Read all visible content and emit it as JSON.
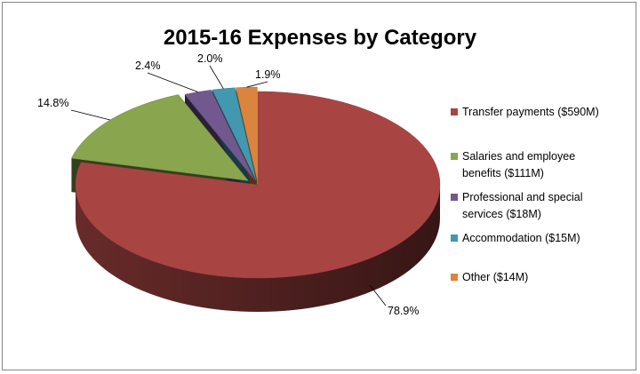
{
  "chart_data": {
    "type": "pie",
    "title": "2015-16 Expenses by Category",
    "style": "3d-exploded",
    "legend_position": "right",
    "slices": [
      {
        "label": "Transfer payments ($590M)",
        "label_lines": [
          "Transfer payments ($590M)"
        ],
        "value": 590,
        "percent_label": "78.9%",
        "color": "#A84543"
      },
      {
        "label": "Salaries and employee benefits ($111M)",
        "label_lines": [
          "Salaries and employee",
          "benefits ($111M)"
        ],
        "value": 111,
        "percent_label": "14.8%",
        "color": "#89A54E"
      },
      {
        "label": "Professional and special services ($18M)",
        "label_lines": [
          "Professional and special",
          "services ($18M)"
        ],
        "value": 18,
        "percent_label": "2.4%",
        "color": "#71588F"
      },
      {
        "label": "Accommodation ($15M)",
        "label_lines": [
          "Accommodation ($15M)"
        ],
        "value": 15,
        "percent_label": "2.0%",
        "color": "#4198AF"
      },
      {
        "label": "Other ($14M)",
        "label_lines": [
          "Other ($14M)"
        ],
        "value": 14,
        "percent_label": "1.9%",
        "color": "#DB843D"
      }
    ]
  }
}
